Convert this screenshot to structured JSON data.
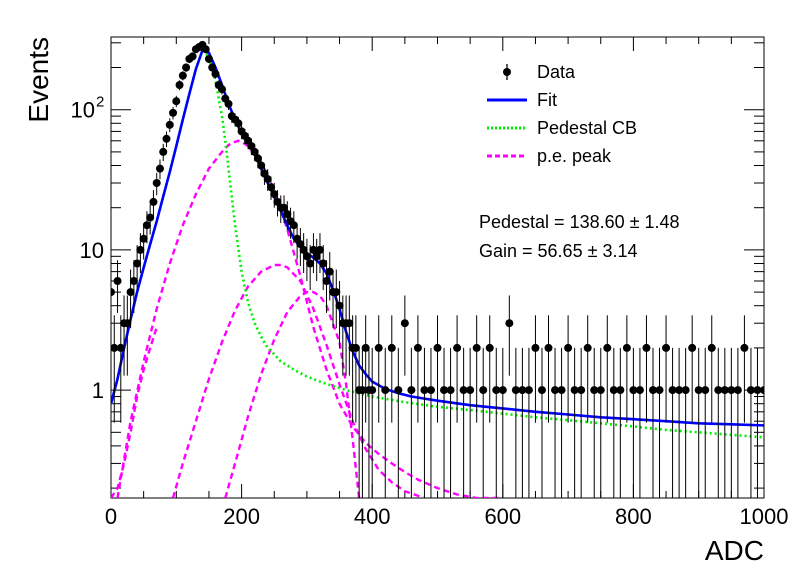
{
  "chart_data": {
    "type": "scatter",
    "xlabel": "ADC",
    "ylabel": "Events",
    "xlim": [
      0,
      1000
    ],
    "ylim": [
      0.17,
      330
    ],
    "yscale": "log",
    "x_ticks": [
      {
        "value": 0,
        "label": "0"
      },
      {
        "value": 200,
        "label": "200"
      },
      {
        "value": 400,
        "label": "400"
      },
      {
        "value": 600,
        "label": "600"
      },
      {
        "value": 800,
        "label": "800"
      },
      {
        "value": 1000,
        "label": "1000"
      }
    ],
    "y_ticks": [
      {
        "value": 1,
        "label": "1"
      },
      {
        "value": 10,
        "label": "10"
      },
      {
        "value": 100,
        "label": "10",
        "exponent": "2"
      }
    ],
    "grid": false,
    "legend": {
      "placement": "top-right",
      "entries": [
        {
          "label": "Data",
          "style": "marker",
          "color": "#000000"
        },
        {
          "label": "Fit",
          "style": "solid",
          "color": "#0000ff"
        },
        {
          "label": "Pedestal CB",
          "style": "dotted",
          "color": "#00ee00"
        },
        {
          "label": "p.e. peak",
          "style": "dashed",
          "color": "#ff00ff"
        }
      ]
    },
    "annotations": [
      {
        "text": "Pedestal = 138.60",
        "pm": "1.48"
      },
      {
        "text": "Gain = 56.65",
        "pm": "3.14"
      }
    ],
    "fit_params": {
      "pedestal": 138.6,
      "gain": 56.65
    },
    "series": [
      {
        "name": "Data",
        "style": "errorbar",
        "color": "#000000",
        "x": [
          0,
          5,
          10,
          15,
          20,
          25,
          30,
          35,
          40,
          45,
          50,
          55,
          60,
          65,
          70,
          75,
          80,
          85,
          90,
          95,
          100,
          105,
          110,
          115,
          120,
          125,
          130,
          135,
          140,
          145,
          150,
          155,
          160,
          165,
          170,
          175,
          180,
          185,
          190,
          195,
          200,
          205,
          210,
          215,
          220,
          225,
          230,
          235,
          240,
          245,
          250,
          255,
          260,
          265,
          270,
          275,
          280,
          285,
          290,
          295,
          300,
          305,
          310,
          315,
          320,
          325,
          330,
          335,
          340,
          345,
          350,
          355,
          360,
          365,
          370,
          375,
          380,
          385,
          390,
          395,
          400,
          410,
          420,
          430,
          440,
          450,
          460,
          470,
          480,
          490,
          500,
          510,
          520,
          530,
          540,
          550,
          560,
          570,
          580,
          590,
          600,
          610,
          620,
          630,
          640,
          650,
          660,
          670,
          680,
          690,
          700,
          710,
          720,
          730,
          740,
          750,
          760,
          770,
          780,
          790,
          800,
          810,
          820,
          830,
          840,
          850,
          860,
          870,
          880,
          890,
          900,
          910,
          920,
          930,
          940,
          950,
          960,
          970,
          980,
          990,
          1000
        ],
        "y": [
          5,
          2,
          6,
          2,
          3,
          3,
          5,
          6,
          8,
          10,
          12,
          15,
          17,
          22,
          30,
          38,
          50,
          62,
          78,
          95,
          115,
          150,
          175,
          200,
          230,
          240,
          270,
          280,
          290,
          270,
          230,
          200,
          180,
          150,
          140,
          120,
          110,
          90,
          85,
          80,
          70,
          65,
          60,
          55,
          50,
          45,
          40,
          35,
          32,
          28,
          25,
          22,
          20,
          20,
          18,
          16,
          15,
          12,
          11,
          10,
          9,
          8,
          10,
          9,
          10,
          8,
          6,
          7,
          5,
          5,
          4,
          3,
          3,
          3,
          2,
          2,
          1,
          1,
          2,
          1,
          1,
          2,
          1,
          2,
          1,
          3,
          1,
          2,
          1,
          1,
          2,
          1,
          1,
          2,
          1,
          1,
          2,
          1,
          2,
          1,
          1,
          3,
          1,
          1,
          1,
          2,
          1,
          2,
          1,
          1,
          2,
          1,
          1,
          2,
          1,
          1,
          2,
          1,
          1,
          2,
          1,
          1,
          2,
          1,
          1,
          2,
          1,
          1,
          1,
          2,
          1,
          1,
          2,
          1,
          1,
          1,
          1,
          2,
          1,
          1,
          1
        ]
      },
      {
        "name": "Fit",
        "style": "solid",
        "color": "#0000ff",
        "x": [
          0,
          10,
          20,
          30,
          40,
          50,
          60,
          70,
          80,
          90,
          100,
          110,
          120,
          130,
          140,
          150,
          160,
          170,
          180,
          190,
          200,
          210,
          220,
          230,
          240,
          250,
          260,
          270,
          280,
          290,
          300,
          310,
          320,
          330,
          340,
          350,
          360,
          370,
          380,
          390,
          400,
          420,
          440,
          460,
          480,
          500,
          550,
          600,
          650,
          700,
          750,
          800,
          850,
          900,
          950,
          1000
        ],
        "y": [
          0.8,
          1.2,
          2,
          3.2,
          5,
          7.5,
          11,
          16,
          24,
          36,
          55,
          85,
          130,
          195,
          265,
          255,
          200,
          150,
          110,
          85,
          68,
          58,
          48,
          38,
          30,
          24,
          19,
          15,
          12,
          10.5,
          9.5,
          8.8,
          8,
          6.8,
          5.2,
          3.8,
          2.6,
          1.9,
          1.5,
          1.3,
          1.15,
          1.02,
          0.95,
          0.9,
          0.87,
          0.84,
          0.78,
          0.74,
          0.7,
          0.67,
          0.64,
          0.62,
          0.6,
          0.58,
          0.57,
          0.56
        ]
      },
      {
        "name": "Pedestal CB",
        "style": "dotted",
        "color": "#00ee00",
        "x": [
          0,
          10,
          20,
          30,
          40,
          50,
          60,
          70,
          80,
          90,
          100,
          110,
          120,
          130,
          140,
          150,
          160,
          170,
          175,
          180,
          190,
          200,
          210,
          220,
          230,
          240,
          250,
          260,
          270,
          280,
          300,
          320,
          340,
          360,
          380,
          400,
          450,
          500,
          550,
          600,
          650,
          700,
          750,
          800,
          850,
          900,
          950,
          1000
        ],
        "y": [
          0.8,
          1.2,
          2,
          3.2,
          5,
          7.5,
          11,
          16,
          24,
          36,
          55,
          85,
          130,
          195,
          265,
          240,
          160,
          90,
          60,
          38,
          15,
          7,
          4.2,
          3,
          2.4,
          2,
          1.8,
          1.6,
          1.5,
          1.4,
          1.25,
          1.15,
          1.07,
          1.0,
          0.95,
          0.9,
          0.82,
          0.76,
          0.72,
          0.68,
          0.64,
          0.61,
          0.58,
          0.55,
          0.52,
          0.5,
          0.48,
          0.46
        ]
      },
      {
        "name": "p.e. peak 1",
        "style": "dashed",
        "color": "#ff00ff",
        "x": [
          10,
          30,
          50,
          70,
          90,
          110,
          130,
          150,
          170,
          180,
          190,
          195,
          200,
          210,
          230,
          250,
          270,
          290,
          310,
          330,
          350,
          370,
          390,
          410,
          430,
          450,
          470,
          500,
          530,
          560,
          600
        ],
        "y": [
          0.17,
          0.6,
          1.6,
          3.8,
          8,
          15,
          25,
          38,
          50,
          56,
          59,
          60,
          59,
          55,
          42,
          27,
          14,
          6.5,
          2.8,
          1.4,
          0.8,
          0.55,
          0.42,
          0.35,
          0.3,
          0.26,
          0.23,
          0.2,
          0.18,
          0.17,
          0.17
        ]
      },
      {
        "name": "p.e. peak 2",
        "style": "dashed",
        "color": "#ff00ff",
        "x": [
          95,
          110,
          130,
          150,
          170,
          190,
          210,
          230,
          250,
          260,
          270,
          290,
          310,
          330,
          350,
          370,
          390,
          410,
          430,
          450,
          480
        ],
        "y": [
          0.17,
          0.3,
          0.6,
          1.2,
          2.2,
          3.7,
          5.5,
          7,
          7.8,
          7.8,
          7.5,
          6,
          3.8,
          2.1,
          1.1,
          0.6,
          0.38,
          0.27,
          0.22,
          0.19,
          0.17
        ]
      },
      {
        "name": "p.e. peak 3",
        "style": "dashed",
        "color": "#ff00ff",
        "x": [
          175,
          190,
          210,
          230,
          250,
          270,
          290,
          300,
          310,
          320,
          330,
          350,
          360,
          370,
          380
        ],
        "y": [
          0.17,
          0.3,
          0.65,
          1.3,
          2.3,
          3.6,
          4.7,
          5,
          5,
          4.7,
          4,
          2.2,
          1.1,
          0.45,
          0.17
        ]
      },
      {
        "name": "p.e. peak 4",
        "style": "dashed",
        "color": "#ff00ff",
        "x": [
          0,
          10,
          20,
          30,
          40,
          50,
          60,
          70
        ],
        "y": [
          0.17,
          0.2,
          0.3,
          0.5,
          0.9,
          1.4,
          2.0,
          2.8
        ]
      }
    ]
  }
}
